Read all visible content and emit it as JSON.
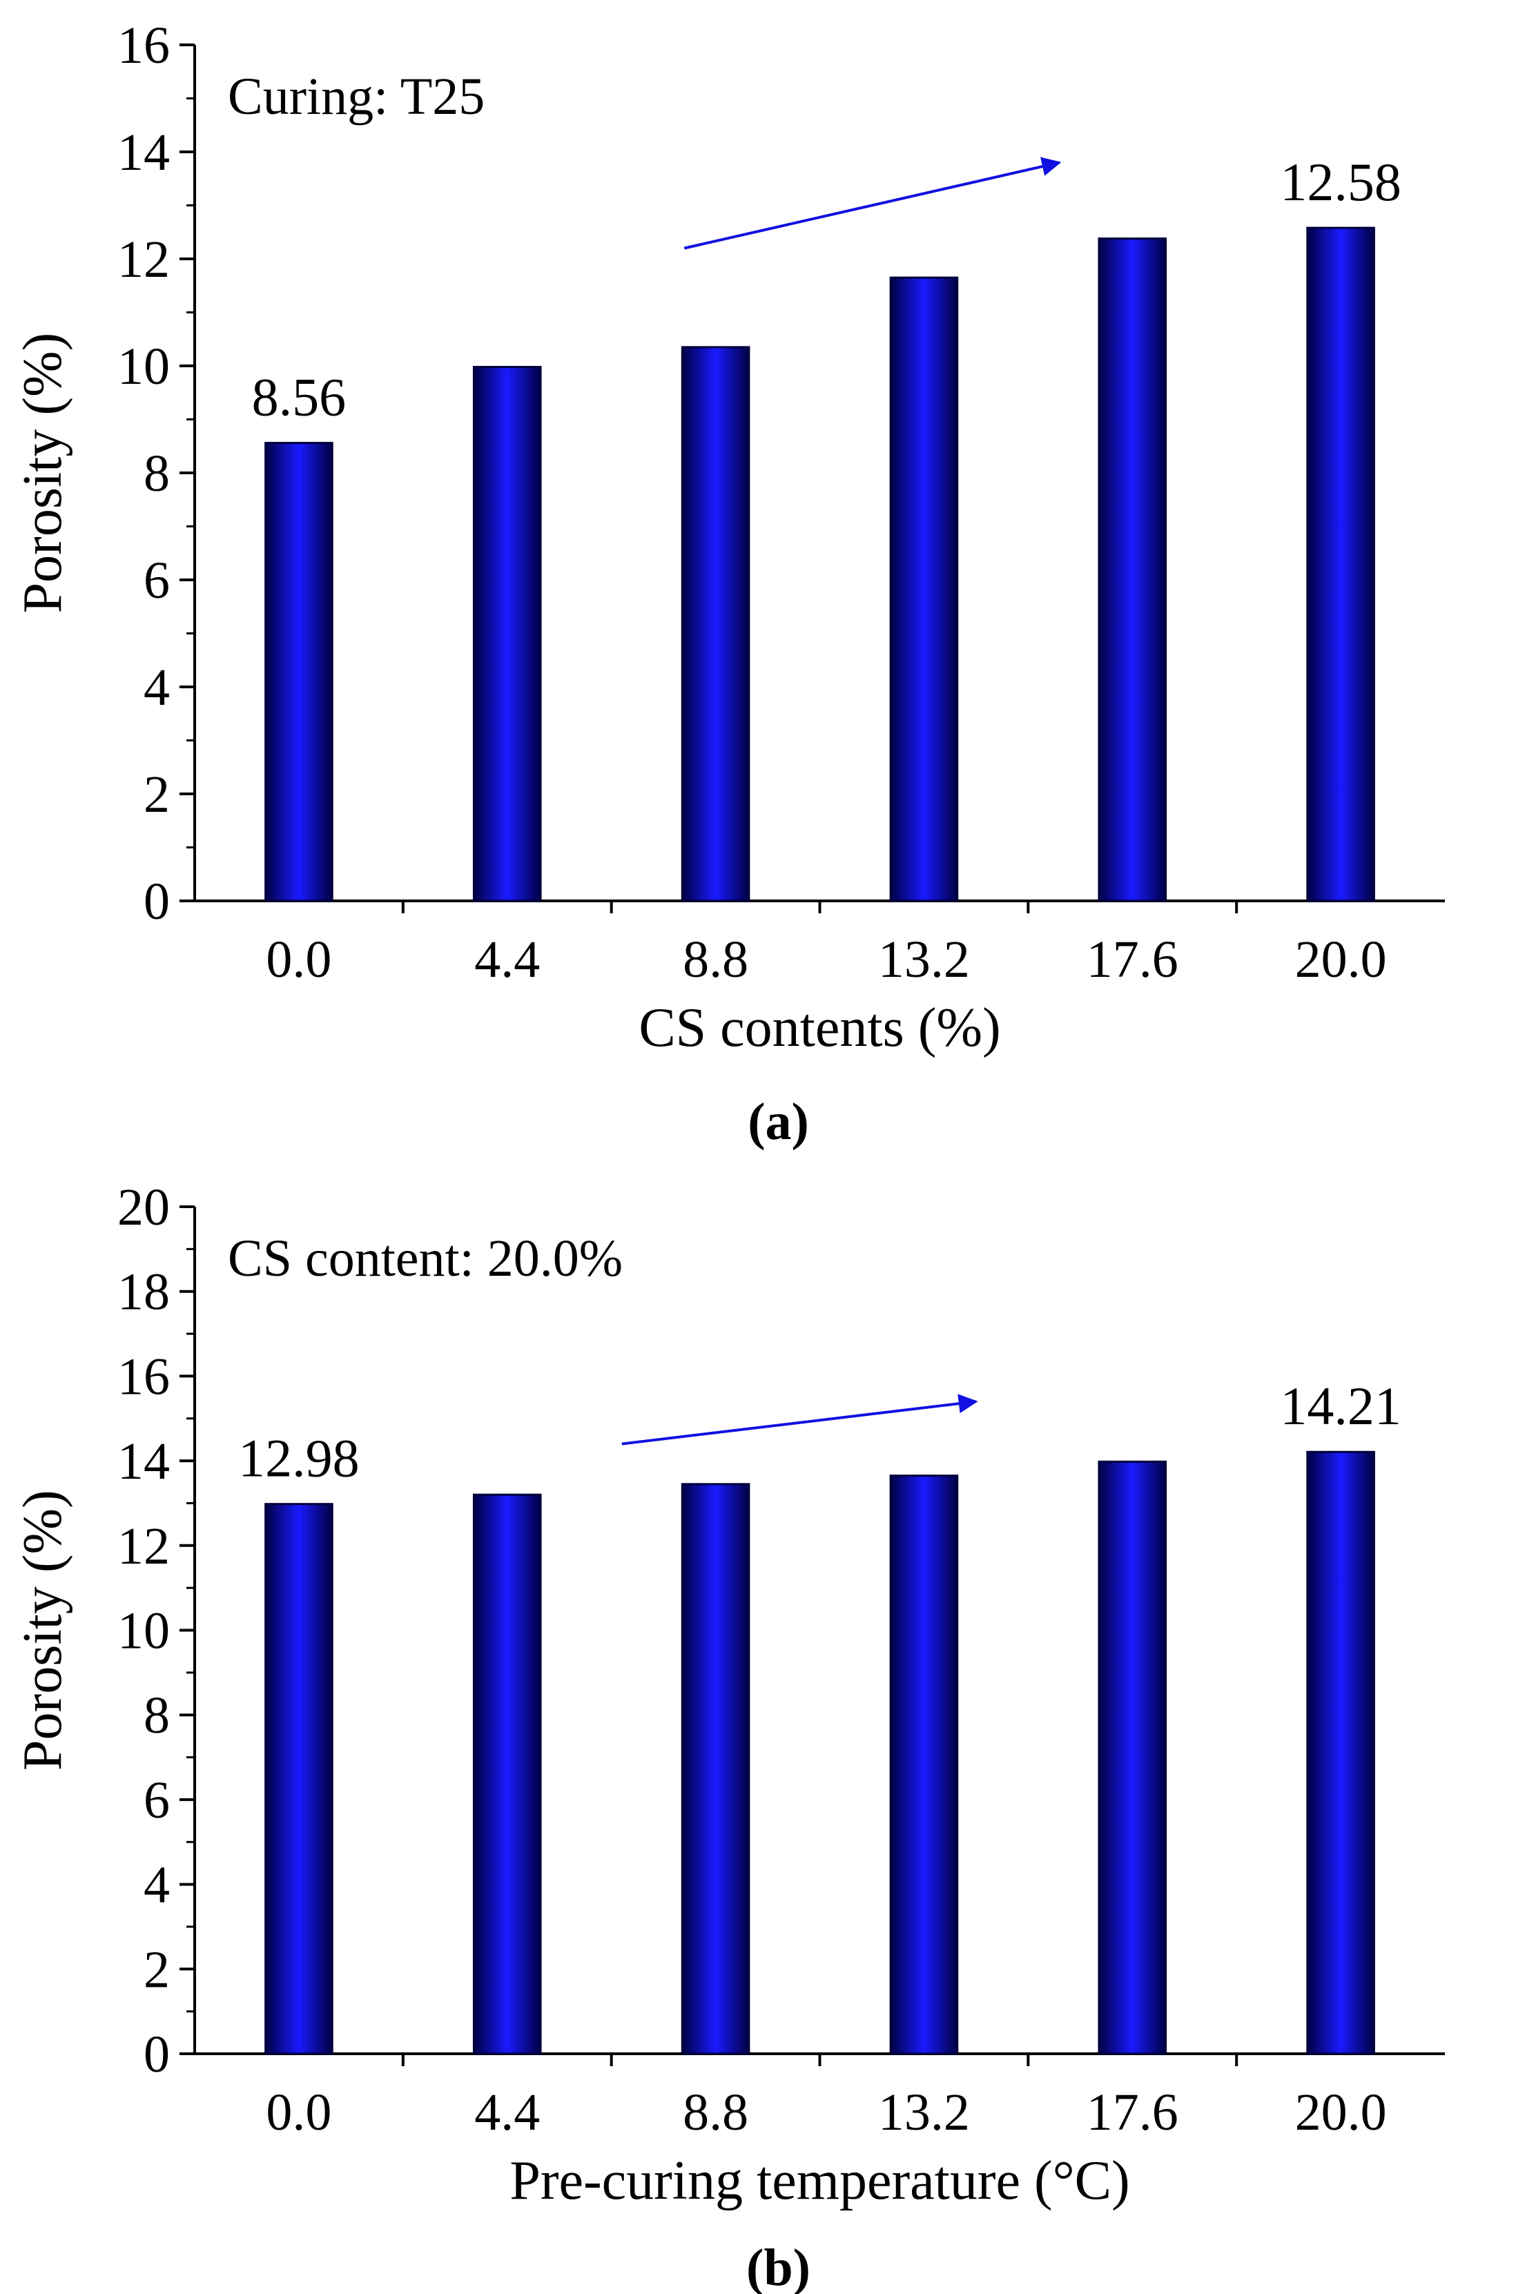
{
  "colors": {
    "bar_edge": "#00003a",
    "bar_center": "#1a1aff",
    "bar_side": "#000044",
    "arrow": "#1010e0",
    "axis": "#000000"
  },
  "chart_data": [
    {
      "type": "bar",
      "panel_label": "(a)",
      "categories": [
        "0.0",
        "4.4",
        "8.8",
        "13.2",
        "17.6",
        "20.0"
      ],
      "values": [
        8.56,
        9.98,
        10.35,
        11.65,
        12.38,
        12.58
      ],
      "xlabel": "CS contents (%)",
      "ylabel": "Porosity (%)",
      "ylim": [
        0,
        16
      ],
      "yticks": [
        "0",
        "2",
        "4",
        "6",
        "8",
        "10",
        "12",
        "14",
        "16"
      ],
      "annotation": "Curing: T25",
      "data_labels": [
        {
          "index": 0,
          "text": "8.56"
        },
        {
          "index": 5,
          "text": "12.58"
        }
      ],
      "trend_arrow": {
        "from": [
          1.85,
          12.2
        ],
        "to": [
          3.65,
          13.8
        ]
      },
      "grid": false
    },
    {
      "type": "bar",
      "panel_label": "(b)",
      "categories": [
        "0.0",
        "4.4",
        "8.8",
        "13.2",
        "17.6",
        "20.0"
      ],
      "values": [
        12.98,
        13.2,
        13.45,
        13.65,
        13.98,
        14.21
      ],
      "xlabel": "Pre-curing temperature (°C)",
      "ylabel": "Porosity (%)",
      "ylim": [
        0,
        20
      ],
      "yticks": [
        "0",
        "2",
        "4",
        "6",
        "8",
        "10",
        "12",
        "14",
        "16",
        "18",
        "20"
      ],
      "annotation": "CS content: 20.0%",
      "data_labels": [
        {
          "index": 0,
          "text": "12.98"
        },
        {
          "index": 5,
          "text": "14.21"
        }
      ],
      "trend_arrow": {
        "from": [
          1.55,
          14.4
        ],
        "to": [
          3.25,
          15.4
        ]
      },
      "grid": false
    }
  ]
}
